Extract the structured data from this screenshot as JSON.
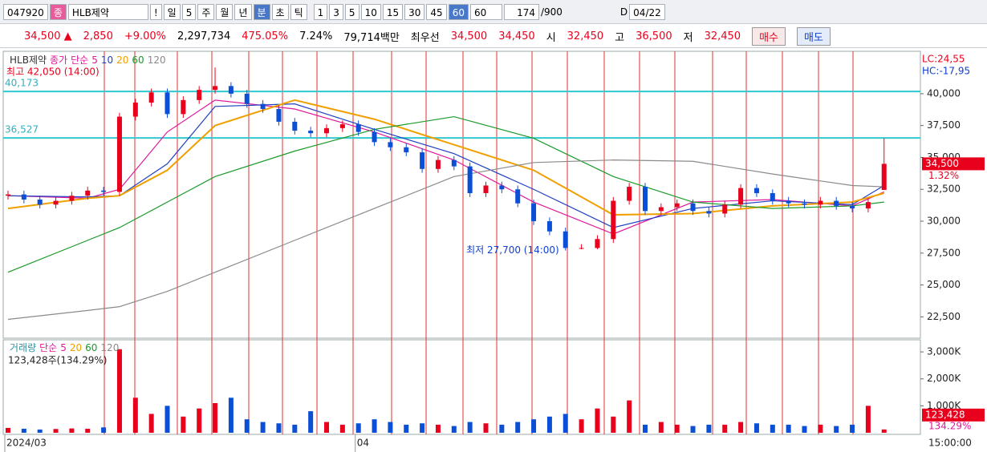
{
  "toolbar": {
    "code": "047920",
    "badge": "종",
    "name": "HLB제약",
    "alert": "!",
    "periods": [
      "일",
      "5",
      "주",
      "월",
      "년",
      "분",
      "초",
      "틱"
    ],
    "minutes": [
      "1",
      "3",
      "5",
      "10",
      "15",
      "30",
      "45",
      "60"
    ],
    "interval": "60",
    "count": "174",
    "total": "/900",
    "d_label": "D",
    "date": "04/22"
  },
  "quote": {
    "price": "34,500 ▲",
    "change": "2,850",
    "rate": "+9.00%",
    "volume": "2,297,734",
    "vol_rate": "475.05%",
    "turnover": "7.24%",
    "amount": "79,714백만",
    "best": "최우선",
    "ask": "34,500",
    "bid": "34,450",
    "open_label": "시",
    "open": "32,450",
    "high_label": "고",
    "high": "36,500",
    "low_label": "저",
    "low": "32,450",
    "buy": "매수",
    "sell": "매도"
  },
  "chart_data": [
    {
      "type": "candlestick",
      "title": "HLB제약",
      "legend_label": "종가",
      "legend_method": "단순",
      "up_color": "#e8001c",
      "down_color": "#0a4fd6",
      "open": [
        32000,
        32100,
        31700,
        31300,
        31600,
        32000,
        32400,
        32300,
        38200,
        39300,
        40100,
        38400,
        39500,
        40300,
        40600,
        40000,
        39200,
        38800,
        37800,
        37100,
        36900,
        37300,
        37600,
        37000,
        36200,
        35800,
        35400,
        34100,
        34800,
        34300,
        32200,
        32800,
        32500,
        31400,
        30000,
        29200,
        27900,
        27900,
        28600,
        31600,
        32700,
        30800,
        31100,
        31400,
        30800,
        30600,
        31300,
        32600,
        32200,
        31600,
        31400,
        31300,
        31600,
        31200,
        31000,
        32450
      ],
      "high": [
        32400,
        32400,
        32000,
        31900,
        32300,
        32700,
        32700,
        38500,
        39600,
        40400,
        40400,
        39800,
        40600,
        42050,
        40900,
        40300,
        39500,
        39100,
        38100,
        37400,
        37600,
        37900,
        37900,
        37300,
        36500,
        36100,
        35700,
        35100,
        35100,
        34600,
        33100,
        33100,
        32800,
        31700,
        30300,
        29500,
        28200,
        28900,
        31900,
        33000,
        33000,
        31400,
        31700,
        31700,
        31100,
        31600,
        32900,
        32900,
        32500,
        31900,
        31700,
        31900,
        31900,
        31500,
        31800,
        36500
      ],
      "low": [
        31700,
        31400,
        31000,
        31000,
        31300,
        31700,
        32000,
        32000,
        37900,
        39000,
        38100,
        38100,
        39200,
        40000,
        39700,
        38900,
        38500,
        37500,
        36800,
        36600,
        36600,
        37000,
        36700,
        35900,
        35500,
        35100,
        33800,
        33800,
        34000,
        31900,
        31900,
        32200,
        31100,
        29700,
        28900,
        27700,
        27800,
        27800,
        28300,
        31300,
        30500,
        30500,
        30800,
        30500,
        30300,
        30300,
        31000,
        31900,
        31300,
        31100,
        31000,
        31000,
        30900,
        30700,
        30700,
        32450
      ],
      "close": [
        32100,
        31700,
        31300,
        31600,
        32000,
        32400,
        32300,
        38200,
        39300,
        40100,
        38400,
        39500,
        40300,
        40600,
        40000,
        39200,
        38800,
        37800,
        37100,
        36900,
        37300,
        37600,
        37000,
        36200,
        35800,
        35400,
        34100,
        34800,
        34300,
        32200,
        32800,
        32500,
        31400,
        30000,
        29200,
        27900,
        27900,
        28600,
        31600,
        32700,
        30800,
        31100,
        31400,
        30800,
        30600,
        31300,
        32600,
        32200,
        31600,
        31400,
        31300,
        31600,
        31200,
        31000,
        31500,
        34500
      ],
      "ma_x": [
        0,
        5,
        7,
        10,
        13,
        18,
        23,
        28,
        33,
        38,
        43,
        48,
        53,
        55
      ],
      "series": [
        {
          "name": "5",
          "color": "#e0189a",
          "values": [
            32000,
            31800,
            32500,
            37000,
            39500,
            38800,
            37000,
            34800,
            31500,
            29000,
            31500,
            31700,
            31200,
            32300
          ]
        },
        {
          "name": "10",
          "color": "#2040c0",
          "values": [
            32000,
            31900,
            32000,
            34500,
            39000,
            39200,
            37200,
            35300,
            32500,
            29500,
            31000,
            31600,
            31300,
            32800
          ]
        },
        {
          "name": "20",
          "color": "#f0a000",
          "values": [
            31000,
            31800,
            32000,
            34000,
            37500,
            39500,
            38000,
            36000,
            34000,
            30500,
            30600,
            31200,
            31500,
            32200
          ]
        },
        {
          "name": "60",
          "color": "#1a9a2a",
          "values": [
            26000,
            28500,
            29500,
            31500,
            33500,
            35500,
            37200,
            38200,
            36500,
            33500,
            31500,
            31000,
            31200,
            31500
          ]
        },
        {
          "name": "120",
          "color": "#8a8a8a",
          "values": [
            22300,
            23000,
            23300,
            24500,
            26000,
            28500,
            31000,
            33500,
            34600,
            34800,
            34700,
            33700,
            32800,
            32700
          ]
        }
      ],
      "ylim": [
        20950,
        43200
      ],
      "yticks": [
        {
          "value": 40000,
          "label": "40,000"
        },
        {
          "value": 37500,
          "label": "37,500"
        },
        {
          "value": 35000,
          "label": "35,000"
        },
        {
          "value": 32500,
          "label": "32,500"
        },
        {
          "value": 30000,
          "label": "30,000"
        },
        {
          "value": 27500,
          "label": "27,500"
        },
        {
          "value": 25000,
          "label": "25,000"
        },
        {
          "value": 22500,
          "label": "22,500"
        }
      ],
      "levels": [
        {
          "value": 40173,
          "label": "40,173"
        },
        {
          "value": 36527,
          "label": "36,527"
        }
      ],
      "annotations": [
        {
          "text": "최고 42,050 (14:00)",
          "index": 13,
          "value": 42050
        },
        {
          "text": "최저 27,700 (14:00)",
          "index": 35,
          "value": 27700
        }
      ],
      "last": {
        "value": 34500,
        "label": "34,500",
        "change_label": "1.32%"
      },
      "lc": "LC:24,55",
      "hc": "HC:-17,95"
    },
    {
      "type": "bar",
      "title": "거래량",
      "legend_method": "단순",
      "ma_names": [
        {
          "name": "5",
          "color": "#e0189a"
        },
        {
          "name": "20",
          "color": "#f0a000"
        },
        {
          "name": "60",
          "color": "#1a9a2a"
        },
        {
          "name": "120",
          "color": "#8a8a8a"
        }
      ],
      "info": "123,428주(134.29%)",
      "values": [
        180,
        150,
        120,
        140,
        160,
        150,
        200,
        3100,
        1300,
        700,
        1000,
        600,
        900,
        1100,
        1300,
        500,
        400,
        350,
        300,
        800,
        400,
        300,
        350,
        500,
        400,
        300,
        350,
        300,
        250,
        400,
        350,
        300,
        400,
        500,
        600,
        700,
        500,
        900,
        600,
        1200,
        300,
        400,
        300,
        250,
        300,
        300,
        400,
        350,
        300,
        300,
        250,
        300,
        250,
        300,
        1000,
        123.428
      ],
      "ylim": [
        0,
        3330
      ],
      "yticks": [
        {
          "value": 3000,
          "label": "3,000K"
        },
        {
          "value": 2000,
          "label": "2,000K"
        },
        {
          "value": 1000,
          "label": "1,000K"
        }
      ],
      "last_label": "123,428",
      "last_pct": "134.29%",
      "x_labels": [
        {
          "index": 0,
          "label": "2024/03"
        },
        {
          "index": 22,
          "label": "04"
        }
      ],
      "time_label": "15:00:00"
    }
  ]
}
